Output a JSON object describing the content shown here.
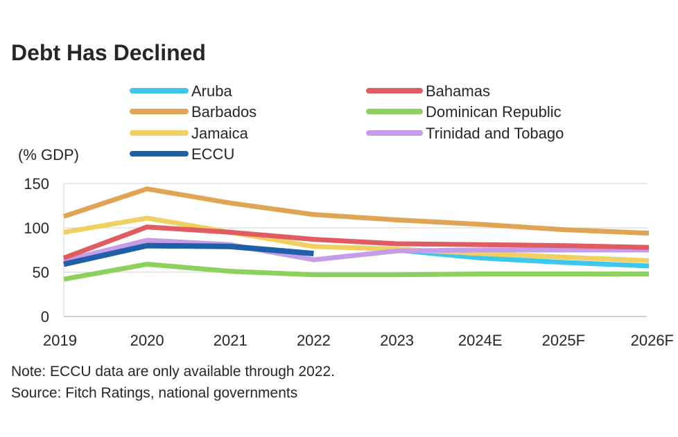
{
  "chart_data": {
    "type": "line",
    "title": "Debt Has Declined",
    "ylabel": "(% GDP)",
    "xlabel": "",
    "categories": [
      "2019",
      "2020",
      "2021",
      "2022",
      "2023",
      "2024E",
      "2025F",
      "2026F"
    ],
    "y_ticks": [
      "0",
      "50",
      "100",
      "150"
    ],
    "ylim": [
      0,
      150
    ],
    "grid": true,
    "legend_position": "top",
    "series": [
      {
        "name": "Aruba",
        "color": "#3ec6ec",
        "values": [
          null,
          null,
          null,
          null,
          75,
          66,
          61,
          57
        ]
      },
      {
        "name": "Jamaica",
        "color": "#f0d060",
        "values": [
          95,
          111,
          95,
          79,
          76,
          71,
          67,
          63
        ]
      },
      {
        "name": "Trinidad and Tobago",
        "color": "#c59ce8",
        "values": [
          63,
          86,
          81,
          64,
          74,
          75,
          75,
          75
        ]
      },
      {
        "name": "Dominican Republic",
        "color": "#8cd05e",
        "values": [
          42,
          59,
          51,
          47,
          47,
          48,
          48,
          48
        ]
      },
      {
        "name": "Bahamas",
        "color": "#e15c60",
        "values": [
          66,
          101,
          95,
          87,
          82,
          81,
          80,
          78
        ]
      },
      {
        "name": "Barbados",
        "color": "#e0a455",
        "values": [
          113,
          144,
          128,
          115,
          109,
          104,
          98,
          94
        ]
      },
      {
        "name": "ECCU",
        "color": "#1e5fa8",
        "values": [
          59,
          80,
          79,
          71,
          null,
          null,
          null,
          null
        ]
      }
    ],
    "legend_order": [
      {
        "name": "Aruba",
        "color": "#3ec6ec"
      },
      {
        "name": "Bahamas",
        "color": "#e15c60"
      },
      {
        "name": "Barbados",
        "color": "#e0a455"
      },
      {
        "name": "Dominican Republic",
        "color": "#8cd05e"
      },
      {
        "name": "Jamaica",
        "color": "#f0d060"
      },
      {
        "name": "Trinidad and Tobago",
        "color": "#c59ce8"
      },
      {
        "name": "ECCU",
        "color": "#1e5fa8"
      }
    ],
    "notes": [
      "Note: ECCU data are only available through 2022.",
      "Source: Fitch Ratings, national governments"
    ]
  }
}
